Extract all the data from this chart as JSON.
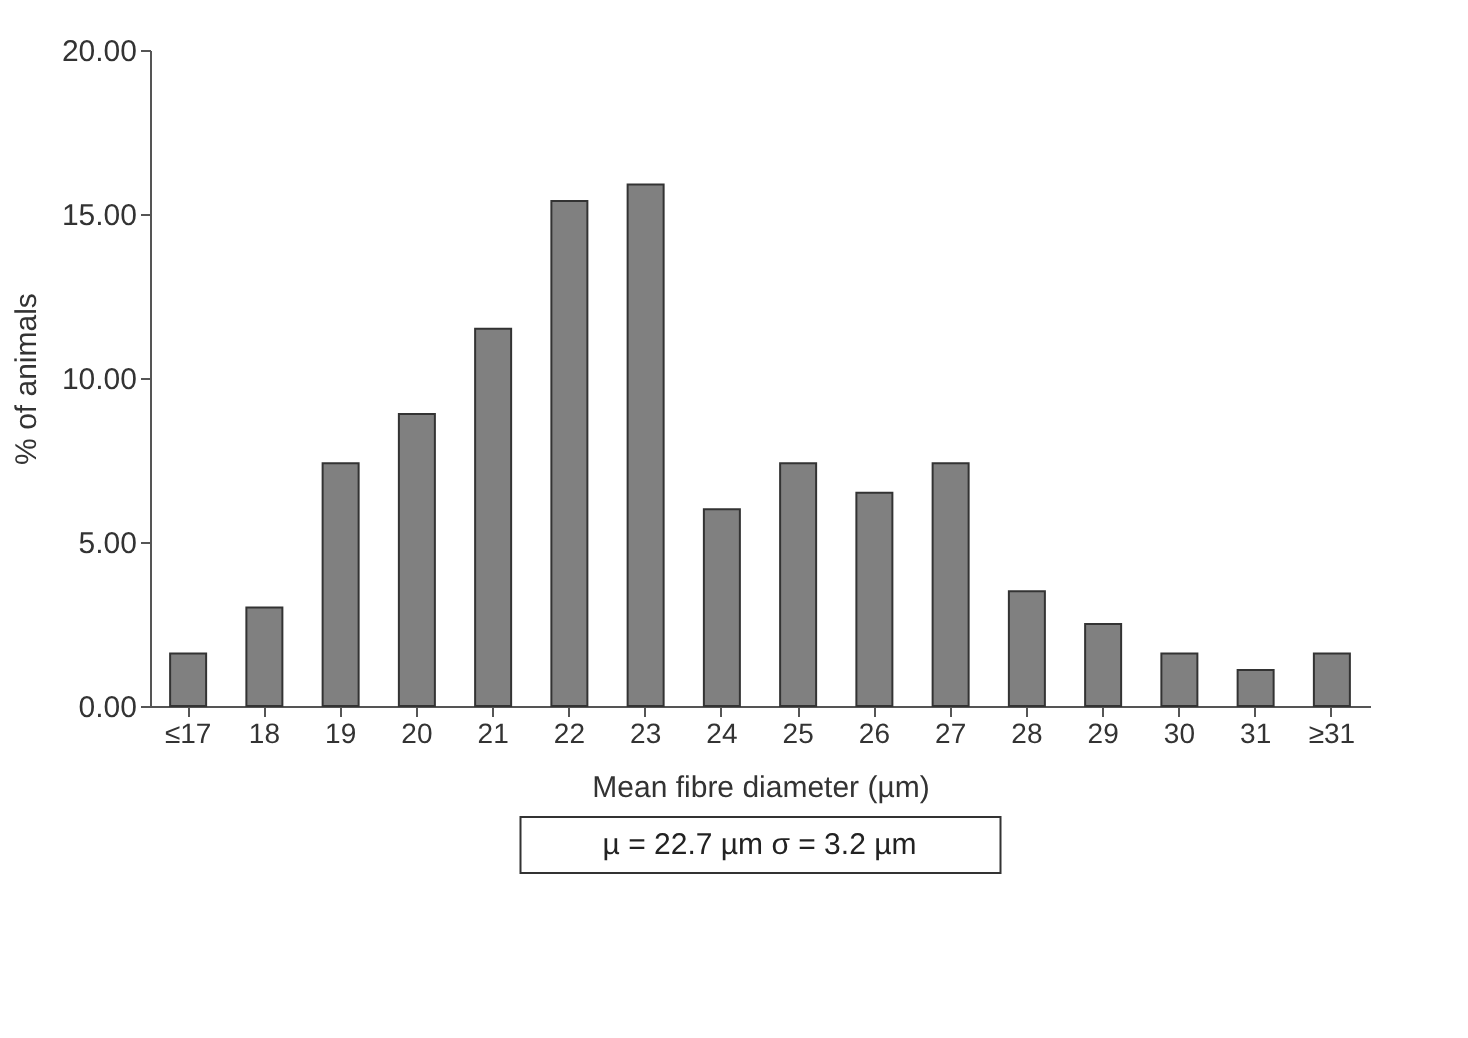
{
  "chart_data": {
    "type": "bar",
    "xlabel": "Mean fibre diameter (µm)",
    "ylabel": "% of animals",
    "categories": [
      "≤17",
      "18",
      "19",
      "20",
      "21",
      "22",
      "23",
      "24",
      "25",
      "26",
      "27",
      "28",
      "29",
      "30",
      "31",
      "≥31"
    ],
    "values": [
      1.6,
      3.0,
      7.4,
      8.9,
      11.5,
      15.4,
      15.9,
      6.0,
      7.4,
      6.5,
      7.4,
      3.5,
      2.5,
      1.6,
      1.1,
      1.6
    ],
    "color": "#808080",
    "ylim": [
      0,
      20
    ],
    "yticks": [
      {
        "value": 0,
        "label": "0.00"
      },
      {
        "value": 5,
        "label": "5.00"
      },
      {
        "value": 10,
        "label": "10.00"
      },
      {
        "value": 15,
        "label": "15.00"
      },
      {
        "value": 20,
        "label": "20.00"
      }
    ],
    "grid": false,
    "annotations": [
      "µ = 22.7 µm        σ = 3.2 µm"
    ]
  }
}
